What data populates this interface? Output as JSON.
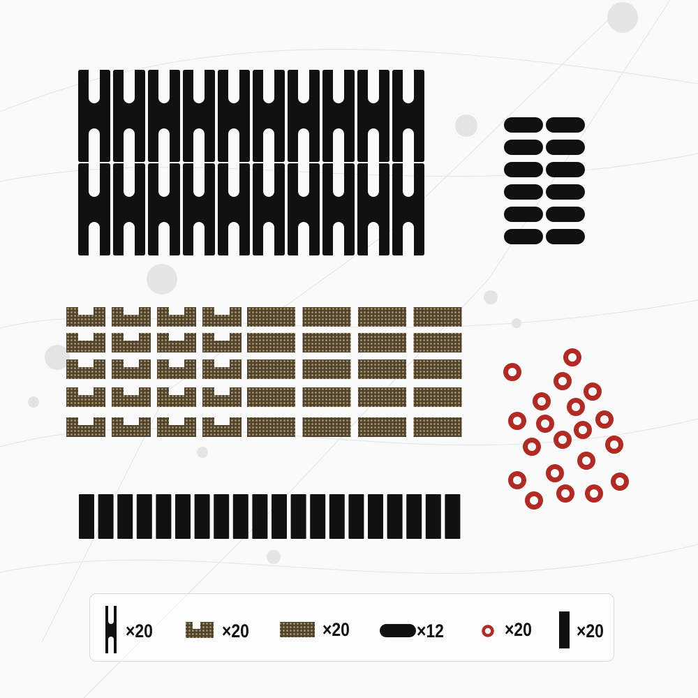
{
  "colors": {
    "black_part": "#111111",
    "fiber_part": "#5a4d35",
    "fiber_dot": "#a89468",
    "washer": "#b22a22",
    "background": "#fafafa"
  },
  "parts": [
    {
      "name": "H-shim",
      "icon": "h-shim-icon",
      "quantity": "×20"
    },
    {
      "name": "U-shim",
      "icon": "u-shim-icon",
      "quantity": "×20"
    },
    {
      "name": "flat-shim",
      "icon": "flat-shim-icon",
      "quantity": "×20"
    },
    {
      "name": "pill-pad",
      "icon": "pill-pad-icon",
      "quantity": "×12"
    },
    {
      "name": "washer",
      "icon": "washer-icon",
      "quantity": "×20"
    },
    {
      "name": "strip",
      "icon": "strip-icon",
      "quantity": "×20"
    }
  ]
}
